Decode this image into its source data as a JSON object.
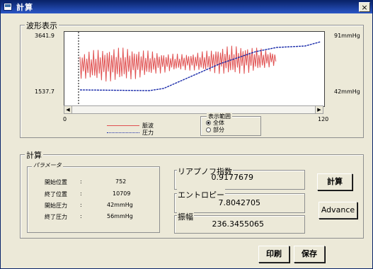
{
  "window": {
    "title": "計算",
    "close": "×"
  },
  "waveform": {
    "group_label": "波形表示",
    "y_left_top": "3641.9",
    "y_left_bottom": "1537.7",
    "y_right_top": "91mmHg",
    "y_right_bottom": "42mmHg",
    "x_min": "0",
    "x_max": "120",
    "legend": [
      {
        "label": "脈波",
        "color": "#E05050"
      },
      {
        "label": "圧力",
        "color": "#1A2BAA"
      }
    ],
    "range_group": {
      "label": "表示範囲",
      "options": [
        {
          "label": "全体",
          "selected": true
        },
        {
          "label": "部分",
          "selected": false
        }
      ]
    },
    "chart_data": {
      "type": "line",
      "x_range": [
        0,
        120
      ],
      "series": [
        {
          "name": "脈波",
          "color": "#E05050"
        },
        {
          "name": "圧力",
          "color": "#1A2BAA"
        }
      ],
      "y_left_range": [
        1537.7,
        3641.9
      ],
      "y_right_range": [
        "42mmHg",
        "91mmHg"
      ]
    }
  },
  "calc": {
    "group_label": "計算",
    "params_label": "パラメータ",
    "params": [
      {
        "name": "開始位置",
        "sep": ":",
        "value": "752"
      },
      {
        "name": "終了位置",
        "sep": ":",
        "value": "10709"
      },
      {
        "name": "開始圧力",
        "sep": ":",
        "value": "42mmHg"
      },
      {
        "name": "終了圧力",
        "sep": ":",
        "value": "56mmHg"
      }
    ],
    "lyapunov": {
      "label": "リアプノフ指数",
      "value": "0.9177679"
    },
    "entropy": {
      "label": "エントロピー",
      "value": "7.8042705"
    },
    "amplitude": {
      "label": "振幅",
      "value": "236.3455065"
    },
    "compute_button": "計算",
    "advance_button": "Advance"
  },
  "footer": {
    "print_button": "印刷",
    "save_button": "保存"
  }
}
